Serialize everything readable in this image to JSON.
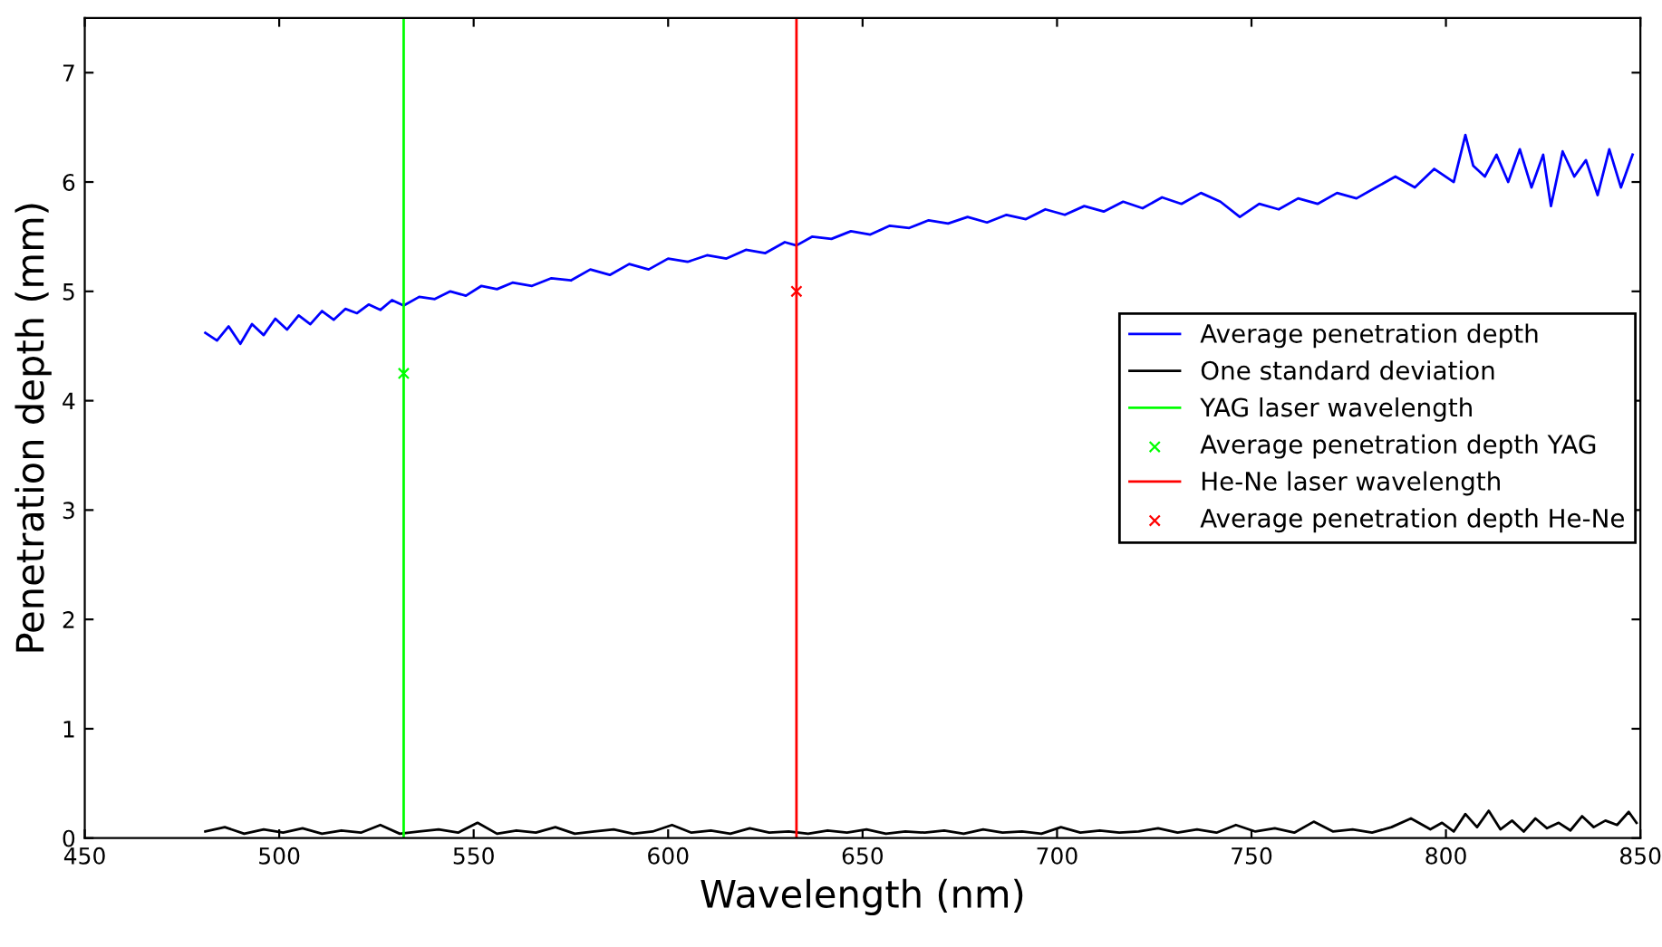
{
  "chart_data": {
    "type": "line",
    "xlabel": "Wavelength (nm)",
    "ylabel": "Penetration depth (mm)",
    "xlim": [
      450,
      850
    ],
    "ylim": [
      0,
      7.5
    ],
    "xticks": [
      450,
      500,
      550,
      600,
      650,
      700,
      750,
      800,
      850
    ],
    "yticks": [
      0,
      1,
      2,
      3,
      4,
      5,
      6,
      7
    ],
    "grid": false,
    "legend": "right",
    "series": [
      {
        "name": "Average penetration depth",
        "color": "#0000ff",
        "x": [
          481,
          484,
          487,
          490,
          493,
          496,
          499,
          502,
          505,
          508,
          511,
          514,
          517,
          520,
          523,
          526,
          529,
          532,
          536,
          540,
          544,
          548,
          552,
          556,
          560,
          565,
          570,
          575,
          580,
          585,
          590,
          595,
          600,
          605,
          610,
          615,
          620,
          625,
          630,
          633,
          637,
          642,
          647,
          652,
          657,
          662,
          667,
          672,
          677,
          682,
          687,
          692,
          697,
          702,
          707,
          712,
          717,
          722,
          727,
          732,
          737,
          742,
          747,
          752,
          757,
          762,
          767,
          772,
          777,
          782,
          787,
          792,
          797,
          802,
          805,
          807,
          810,
          813,
          816,
          819,
          822,
          825,
          827,
          830,
          833,
          836,
          839,
          842,
          845,
          848
        ],
        "values": [
          4.62,
          4.55,
          4.68,
          4.52,
          4.7,
          4.6,
          4.75,
          4.65,
          4.78,
          4.7,
          4.82,
          4.74,
          4.84,
          4.8,
          4.88,
          4.83,
          4.92,
          4.87,
          4.95,
          4.93,
          5.0,
          4.96,
          5.05,
          5.02,
          5.08,
          5.05,
          5.12,
          5.1,
          5.2,
          5.15,
          5.25,
          5.2,
          5.3,
          5.27,
          5.33,
          5.3,
          5.38,
          5.35,
          5.45,
          5.42,
          5.5,
          5.48,
          5.55,
          5.52,
          5.6,
          5.58,
          5.65,
          5.62,
          5.68,
          5.63,
          5.7,
          5.66,
          5.75,
          5.7,
          5.78,
          5.73,
          5.82,
          5.76,
          5.86,
          5.8,
          5.9,
          5.82,
          5.68,
          5.8,
          5.75,
          5.85,
          5.8,
          5.9,
          5.85,
          5.95,
          6.05,
          5.95,
          6.12,
          6.0,
          6.43,
          6.15,
          6.05,
          6.25,
          6.0,
          6.3,
          5.95,
          6.25,
          5.78,
          6.28,
          6.05,
          6.2,
          5.88,
          6.3,
          5.95,
          6.25
        ]
      },
      {
        "name": "One standard deviation",
        "color": "#000000",
        "x": [
          481,
          486,
          491,
          496,
          501,
          506,
          511,
          516,
          521,
          526,
          531,
          536,
          541,
          546,
          551,
          556,
          561,
          566,
          571,
          576,
          581,
          586,
          591,
          596,
          601,
          606,
          611,
          616,
          621,
          626,
          631,
          636,
          641,
          646,
          651,
          656,
          661,
          666,
          671,
          676,
          681,
          686,
          691,
          696,
          701,
          706,
          711,
          716,
          721,
          726,
          731,
          736,
          741,
          746,
          751,
          756,
          761,
          766,
          771,
          776,
          781,
          786,
          791,
          796,
          799,
          802,
          805,
          808,
          811,
          814,
          817,
          820,
          823,
          826,
          829,
          832,
          835,
          838,
          841,
          844,
          847,
          849
        ],
        "values": [
          0.06,
          0.1,
          0.04,
          0.08,
          0.05,
          0.09,
          0.04,
          0.07,
          0.05,
          0.12,
          0.04,
          0.06,
          0.08,
          0.05,
          0.14,
          0.04,
          0.07,
          0.05,
          0.1,
          0.04,
          0.06,
          0.08,
          0.04,
          0.06,
          0.12,
          0.05,
          0.07,
          0.04,
          0.09,
          0.05,
          0.06,
          0.04,
          0.07,
          0.05,
          0.08,
          0.04,
          0.06,
          0.05,
          0.07,
          0.04,
          0.08,
          0.05,
          0.06,
          0.04,
          0.1,
          0.05,
          0.07,
          0.05,
          0.06,
          0.09,
          0.05,
          0.08,
          0.05,
          0.12,
          0.06,
          0.09,
          0.05,
          0.15,
          0.06,
          0.08,
          0.05,
          0.1,
          0.18,
          0.08,
          0.14,
          0.06,
          0.22,
          0.1,
          0.25,
          0.08,
          0.16,
          0.06,
          0.18,
          0.09,
          0.14,
          0.07,
          0.2,
          0.1,
          0.16,
          0.12,
          0.24,
          0.14
        ]
      },
      {
        "name": "YAG laser wavelength",
        "color": "#00ff00",
        "x": [
          532,
          532
        ],
        "values": [
          0,
          7.5
        ]
      },
      {
        "name": "Average penetration depth YAG",
        "color": "#00ff00",
        "type": "scatter",
        "marker": "cross",
        "x": [
          532
        ],
        "values": [
          4.25
        ]
      },
      {
        "name": "He-Ne laser wavelength",
        "color": "#ff0000",
        "x": [
          633,
          633
        ],
        "values": [
          0,
          7.5
        ]
      },
      {
        "name": "Average penetration depth He-Ne",
        "color": "#ff0000",
        "type": "scatter",
        "marker": "cross",
        "x": [
          633
        ],
        "values": [
          5.0
        ]
      }
    ]
  }
}
